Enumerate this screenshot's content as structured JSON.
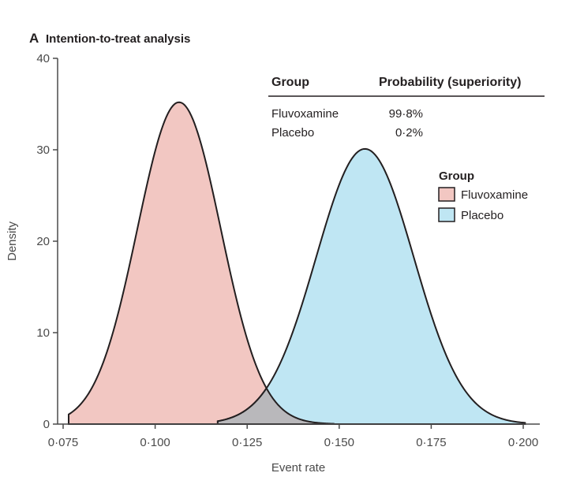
{
  "colors": {
    "fluvoxamine": "#f2c7c2",
    "placebo": "#bfe6f3",
    "overlap": "#b9b8bb",
    "stroke": "#231f20",
    "axis": "#4a4a4a"
  },
  "table": {
    "headers": [
      "Group",
      "Probability (superiority)"
    ],
    "rows": [
      {
        "group": "Fluvoxamine",
        "probability": "99·8%"
      },
      {
        "group": "Placebo",
        "probability": "0·2%"
      }
    ]
  },
  "chart_data": {
    "type": "area",
    "panel_letter": "A",
    "title": "Intention-to-treat analysis",
    "xlabel": "Event rate",
    "ylabel": "Density",
    "xlim": [
      0.0735,
      0.2045
    ],
    "ylim": [
      0,
      40
    ],
    "xticks": [
      0.075,
      0.1,
      0.125,
      0.15,
      0.175,
      0.2
    ],
    "xtick_labels": [
      "0·075",
      "0·100",
      "0·125",
      "0·150",
      "0·175",
      "0·200"
    ],
    "yticks": [
      0,
      10,
      20,
      30,
      40
    ],
    "ytick_labels": [
      "0",
      "10",
      "20",
      "30",
      "40"
    ],
    "legend": {
      "title": "Group",
      "position": "right",
      "entries": [
        "Fluvoxamine",
        "Placebo"
      ]
    },
    "series": [
      {
        "name": "Fluvoxamine",
        "mean": 0.1065,
        "peak_density": 35.2,
        "x_range": [
          0.0765,
          0.1485
        ]
      },
      {
        "name": "Placebo",
        "mean": 0.157,
        "peak_density": 30.1,
        "x_range": [
          0.117,
          0.2005
        ]
      }
    ]
  }
}
